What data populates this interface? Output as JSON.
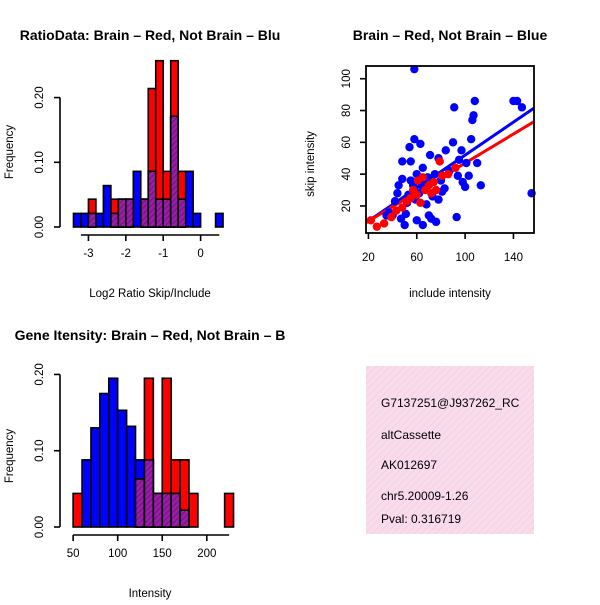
{
  "chart_data": [
    {
      "type": "histogram",
      "title": "RatioData: Brain – Red, Not Brain – Blu",
      "xlabel": "Log2 Ratio Skip/Include",
      "ylabel": "Frequency",
      "xticks": [
        "-3",
        "-2",
        "-1",
        "0"
      ],
      "xtick_values": [
        -3,
        -2,
        -1,
        0
      ],
      "yticks": [
        "0.00",
        "0.10",
        "0.20"
      ],
      "ytick_values": [
        0,
        0.1,
        0.2
      ],
      "xlim": [
        -3.6,
        1.0
      ],
      "ylim": [
        0,
        0.255
      ],
      "bin_width": 0.2,
      "series": [
        {
          "name": "Not Brain",
          "color": "#0000ff",
          "x_left": [
            -3.4,
            -3.2,
            -3.0,
            -2.8,
            -2.6,
            -2.4,
            -2.2,
            -2.0,
            -1.8,
            -1.6,
            -1.4,
            -1.2,
            -1.0,
            -0.8,
            -0.6,
            -0.4,
            -0.2,
            0.0,
            0.2,
            0.4,
            0.6
          ],
          "values": [
            0.021,
            0.021,
            0.021,
            0.021,
            0.064,
            0.021,
            0.043,
            0.043,
            0.086,
            0.043,
            0.086,
            0.043,
            0.043,
            0.171,
            0.043,
            0.086,
            0.021,
            0.0,
            0.0,
            0.021,
            0.0
          ]
        },
        {
          "name": "Brain",
          "color": "#ff0000",
          "x_left": [
            -3.0,
            -2.4,
            -2.2,
            -2.0,
            -1.6,
            -1.4,
            -1.2,
            -1.0,
            -0.8,
            -0.6
          ],
          "values": [
            0.043,
            0.043,
            0.043,
            0.043,
            0.043,
            0.214,
            0.257,
            0.086,
            0.257,
            0.086
          ]
        }
      ]
    },
    {
      "type": "scatter",
      "title": "Brain – Red, Not Brain – Blue",
      "xlabel": "include intensity",
      "ylabel": "skip intensity",
      "xticks": [
        "20",
        "60",
        "100",
        "140"
      ],
      "xtick_values": [
        20,
        60,
        100,
        140
      ],
      "yticks": [
        "20",
        "40",
        "60",
        "80",
        "100"
      ],
      "ytick_values": [
        20,
        40,
        60,
        80,
        100
      ],
      "xlim": [
        18,
        157
      ],
      "ylim": [
        3,
        108
      ],
      "series": [
        {
          "name": "Not Brain",
          "color": "#0000ff",
          "points": [
            [
              35,
              14
            ],
            [
              37,
              16
            ],
            [
              40,
              14
            ],
            [
              42,
              23
            ],
            [
              44,
              28
            ],
            [
              45,
              33
            ],
            [
              47,
              12
            ],
            [
              48,
              48
            ],
            [
              48,
              37
            ],
            [
              50,
              8
            ],
            [
              51,
              15
            ],
            [
              52,
              22
            ],
            [
              53,
              27
            ],
            [
              54,
              57
            ],
            [
              55,
              48
            ],
            [
              55,
              36
            ],
            [
              57,
              33
            ],
            [
              58,
              106
            ],
            [
              58,
              62
            ],
            [
              59,
              24
            ],
            [
              60,
              11
            ],
            [
              60,
              40
            ],
            [
              62,
              28
            ],
            [
              63,
              59
            ],
            [
              64,
              33
            ],
            [
              65,
              8
            ],
            [
              65,
              44
            ],
            [
              67,
              37
            ],
            [
              68,
              21
            ],
            [
              69,
              38
            ],
            [
              70,
              14
            ],
            [
              71,
              52
            ],
            [
              72,
              12
            ],
            [
              73,
              26
            ],
            [
              75,
              40
            ],
            [
              76,
              10
            ],
            [
              78,
              50
            ],
            [
              78,
              24
            ],
            [
              80,
              36
            ],
            [
              81,
              29
            ],
            [
              83,
              31
            ],
            [
              84,
              55
            ],
            [
              87,
              42
            ],
            [
              90,
              60
            ],
            [
              91,
              82
            ],
            [
              93,
              13
            ],
            [
              94,
              39
            ],
            [
              95,
              49
            ],
            [
              97,
              55
            ],
            [
              98,
              35
            ],
            [
              100,
              32
            ],
            [
              101,
              47
            ],
            [
              103,
              39
            ],
            [
              105,
              62
            ],
            [
              106,
              74
            ],
            [
              107,
              77
            ],
            [
              108,
              86
            ],
            [
              110,
              47
            ],
            [
              113,
              33
            ],
            [
              140,
              86
            ],
            [
              143,
              86
            ],
            [
              147,
              82
            ],
            [
              155,
              28
            ]
          ]
        },
        {
          "name": "Brain",
          "color": "#ff0000",
          "points": [
            [
              22,
              11
            ],
            [
              27,
              7
            ],
            [
              33,
              9
            ],
            [
              39,
              13
            ],
            [
              43,
              17
            ],
            [
              48,
              19
            ],
            [
              52,
              23
            ],
            [
              55,
              25
            ],
            [
              57,
              30
            ],
            [
              60,
              27
            ],
            [
              61,
              36
            ],
            [
              63,
              22
            ],
            [
              65,
              38
            ],
            [
              67,
              30
            ],
            [
              70,
              33
            ],
            [
              72,
              28
            ],
            [
              74,
              35
            ],
            [
              76,
              30
            ],
            [
              79,
              48
            ],
            [
              81,
              39
            ],
            [
              86,
              40
            ],
            [
              92,
              44
            ]
          ]
        }
      ],
      "fit_lines": [
        {
          "name": "Not Brain fit",
          "color": "#0000ff",
          "x": [
            18,
            157
          ],
          "y": [
            9.5,
            81.5
          ]
        },
        {
          "name": "Brain fit",
          "color": "#ff0000",
          "x": [
            18,
            157
          ],
          "y": [
            9.5,
            73.0
          ]
        }
      ]
    },
    {
      "type": "histogram",
      "title": "Gene Itensity: Brain – Red, Not Brain – B",
      "xlabel": "Intensity",
      "ylabel": "Frequency",
      "xticks": [
        "50",
        "100",
        "150",
        "200"
      ],
      "xtick_values": [
        50,
        100,
        150,
        200
      ],
      "yticks": [
        "0.00",
        "0.10",
        "0.20"
      ],
      "ytick_values": [
        0,
        0.1,
        0.2
      ],
      "xlim": [
        42,
        235
      ],
      "ylim": [
        0,
        0.215
      ],
      "bin_width": 10,
      "series": [
        {
          "name": "Not Brain",
          "color": "#0000ff",
          "x_left": [
            50,
            60,
            70,
            80,
            90,
            100,
            110,
            120,
            130,
            140,
            150,
            160,
            170
          ],
          "values": [
            0.0,
            0.088,
            0.13,
            0.175,
            0.195,
            0.153,
            0.132,
            0.088,
            0.088,
            0.044,
            0.044,
            0.044,
            0.022
          ]
        },
        {
          "name": "Brain",
          "color": "#ff0000",
          "x_left": [
            50,
            120,
            130,
            140,
            150,
            160,
            170,
            180,
            220
          ],
          "values": [
            0.044,
            0.063,
            0.195,
            0.044,
            0.195,
            0.088,
            0.088,
            0.044,
            0.044
          ]
        }
      ]
    }
  ],
  "info_box": {
    "id": "G7137251@J937262_RC",
    "event_type": "altCassette",
    "accession": "AK012697",
    "locus": "chr5.20009-1.26",
    "pval": "Pval: 0.316719",
    "bg_color": "#f8dceb",
    "pval_color": "#b00000"
  }
}
